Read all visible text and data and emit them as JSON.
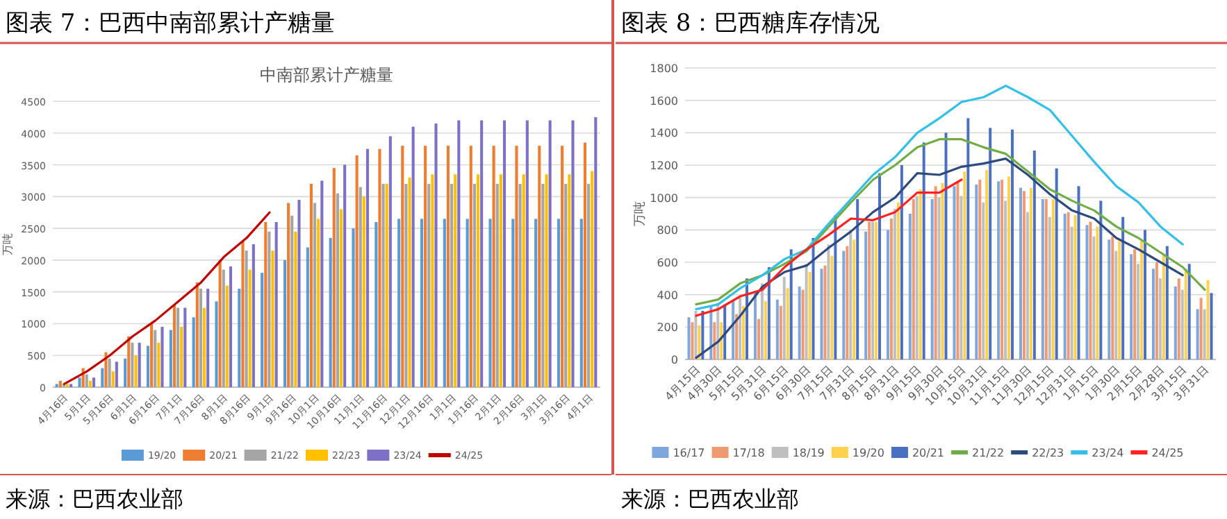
{
  "chart_data": [
    {
      "type": "bar",
      "title": "图表 7：巴西中南部累计产糖量",
      "subtitle": "中南部累计产糖量",
      "ylabel": "万吨",
      "annotations": [
        "来源：巴西农业部"
      ],
      "categories": [
        "4月16日",
        "5月1日",
        "5月16日",
        "6月1日",
        "6月16日",
        "7月1日",
        "7月16日",
        "8月1日",
        "8月16日",
        "9月1日",
        "9月16日",
        "10月1日",
        "10月16日",
        "11月1日",
        "11月16日",
        "12月1日",
        "12月16日",
        "1月1日",
        "1月16日",
        "2月1日",
        "2月16日",
        "3月1日",
        "3月16日",
        "4月1日"
      ],
      "ylim": [
        0,
        4500
      ],
      "yticks": [
        0,
        500,
        1000,
        1500,
        2000,
        2500,
        3000,
        3500,
        4000,
        4500
      ],
      "grid": "y",
      "legend": "bottom",
      "series": [
        {
          "name": "19/20",
          "color": "#5b9bd5",
          "values": [
            50,
            150,
            300,
            450,
            650,
            900,
            1100,
            1350,
            1550,
            1800,
            2000,
            2200,
            2350,
            2500,
            2600,
            2650,
            2650,
            2650,
            2650,
            2650,
            2650,
            2650,
            2650,
            2650
          ]
        },
        {
          "name": "20/21",
          "color": "#ed7d31",
          "values": [
            100,
            300,
            550,
            800,
            1000,
            1300,
            1650,
            2000,
            2300,
            2600,
            2900,
            3200,
            3450,
            3650,
            3750,
            3800,
            3800,
            3800,
            3800,
            3800,
            3800,
            3800,
            3800,
            3850
          ]
        },
        {
          "name": "21/22",
          "color": "#a5a5a5",
          "values": [
            50,
            200,
            450,
            700,
            900,
            1250,
            1550,
            1850,
            2150,
            2450,
            2700,
            2900,
            3050,
            3150,
            3200,
            3200,
            3200,
            3200,
            3200,
            3200,
            3200,
            3200,
            3200,
            3200
          ]
        },
        {
          "name": "22/23",
          "color": "#ffc000",
          "values": [
            50,
            100,
            250,
            500,
            700,
            950,
            1250,
            1600,
            1850,
            2150,
            2450,
            2650,
            2800,
            3000,
            3200,
            3300,
            3350,
            3350,
            3350,
            3350,
            3350,
            3350,
            3350,
            3400
          ]
        },
        {
          "name": "23/24",
          "color": "#7e6fc7",
          "values": [
            50,
            150,
            400,
            700,
            950,
            1250,
            1550,
            1900,
            2250,
            2600,
            2950,
            3250,
            3500,
            3750,
            3950,
            4100,
            4150,
            4200,
            4200,
            4200,
            4200,
            4200,
            4200,
            4250
          ]
        },
        {
          "name": "24/25",
          "type": "line",
          "color": "#c00000",
          "values": [
            50,
            250,
            500,
            800,
            1050,
            1350,
            1650,
            2050,
            2350,
            2750,
            null,
            null,
            null,
            null,
            null,
            null,
            null,
            null,
            null,
            null,
            null,
            null,
            null,
            null
          ]
        }
      ]
    },
    {
      "type": "bar",
      "title": "图表 8：巴西糖库存情况",
      "ylabel": "万吨",
      "annotations": [
        "来源：巴西农业部"
      ],
      "categories": [
        "4月15日",
        "4月30日",
        "5月15日",
        "5月31日",
        "6月15日",
        "6月30日",
        "7月15日",
        "7月31日",
        "8月15日",
        "8月31日",
        "9月15日",
        "9月30日",
        "10月15日",
        "10月31日",
        "11月15日",
        "11月30日",
        "12月15日",
        "12月31日",
        "1月15日",
        "1月30日",
        "2月15日",
        "2月28日",
        "3月15日",
        "3月31日"
      ],
      "ylim": [
        0,
        1800
      ],
      "yticks": [
        0,
        200,
        400,
        600,
        800,
        1000,
        1200,
        1400,
        1600,
        1800
      ],
      "grid": "y",
      "legend": "bottom",
      "series": [
        {
          "name": "16/17",
          "color": "#7fa7dd",
          "values": [
            260,
            330,
            360,
            420,
            370,
            450,
            560,
            670,
            790,
            800,
            900,
            990,
            1070,
            1080,
            1100,
            1060,
            990,
            900,
            830,
            740,
            650,
            560,
            450,
            310
          ]
        },
        {
          "name": "17/18",
          "color": "#f09a72",
          "values": [
            230,
            230,
            280,
            250,
            330,
            430,
            580,
            700,
            850,
            870,
            990,
            1070,
            1100,
            1110,
            1110,
            1040,
            990,
            910,
            850,
            760,
            680,
            600,
            500,
            380
          ]
        },
        {
          "name": "18/19",
          "color": "#bfbfbf",
          "values": [
            300,
            350,
            380,
            470,
            510,
            590,
            710,
            800,
            850,
            930,
            1010,
            1000,
            1010,
            970,
            980,
            910,
            880,
            820,
            760,
            670,
            590,
            500,
            430,
            310
          ]
        },
        {
          "name": "19/20",
          "color": "#ffd24d",
          "values": [
            210,
            230,
            330,
            360,
            440,
            540,
            640,
            740,
            850,
            970,
            1050,
            1090,
            1160,
            1170,
            1130,
            1060,
            990,
            890,
            820,
            730,
            730,
            650,
            560,
            490
          ]
        },
        {
          "name": "20/21",
          "color": "#4a70c4",
          "values": [
            300,
            340,
            500,
            570,
            680,
            750,
            890,
            990,
            1150,
            1200,
            1340,
            1400,
            1490,
            1430,
            1420,
            1290,
            1180,
            1070,
            980,
            880,
            800,
            700,
            590,
            410
          ]
        },
        {
          "name": "21/22",
          "type": "line",
          "color": "#70ad47",
          "values": [
            340,
            370,
            470,
            520,
            590,
            670,
            820,
            970,
            1110,
            1200,
            1310,
            1360,
            1360,
            1310,
            1270,
            1160,
            1050,
            980,
            920,
            820,
            750,
            660,
            570,
            430
          ]
        },
        {
          "name": "22/23",
          "type": "line",
          "color": "#2e4a7d",
          "values": [
            10,
            110,
            270,
            450,
            540,
            580,
            690,
            790,
            910,
            1000,
            1150,
            1140,
            1190,
            1210,
            1240,
            1140,
            1020,
            920,
            870,
            750,
            680,
            600,
            520,
            null
          ]
        },
        {
          "name": "23/24",
          "type": "line",
          "color": "#33bfe6",
          "values": [
            310,
            340,
            440,
            520,
            620,
            680,
            840,
            990,
            1140,
            1250,
            1400,
            1490,
            1590,
            1620,
            1690,
            1620,
            1540,
            1380,
            1220,
            1070,
            970,
            820,
            710,
            null
          ]
        },
        {
          "name": "24/25",
          "type": "line",
          "color": "#ff2020",
          "values": [
            270,
            310,
            390,
            430,
            570,
            680,
            770,
            870,
            860,
            910,
            1030,
            1030,
            1110,
            null,
            null,
            null,
            null,
            null,
            null,
            null,
            null,
            null,
            null,
            null
          ]
        }
      ]
    }
  ]
}
